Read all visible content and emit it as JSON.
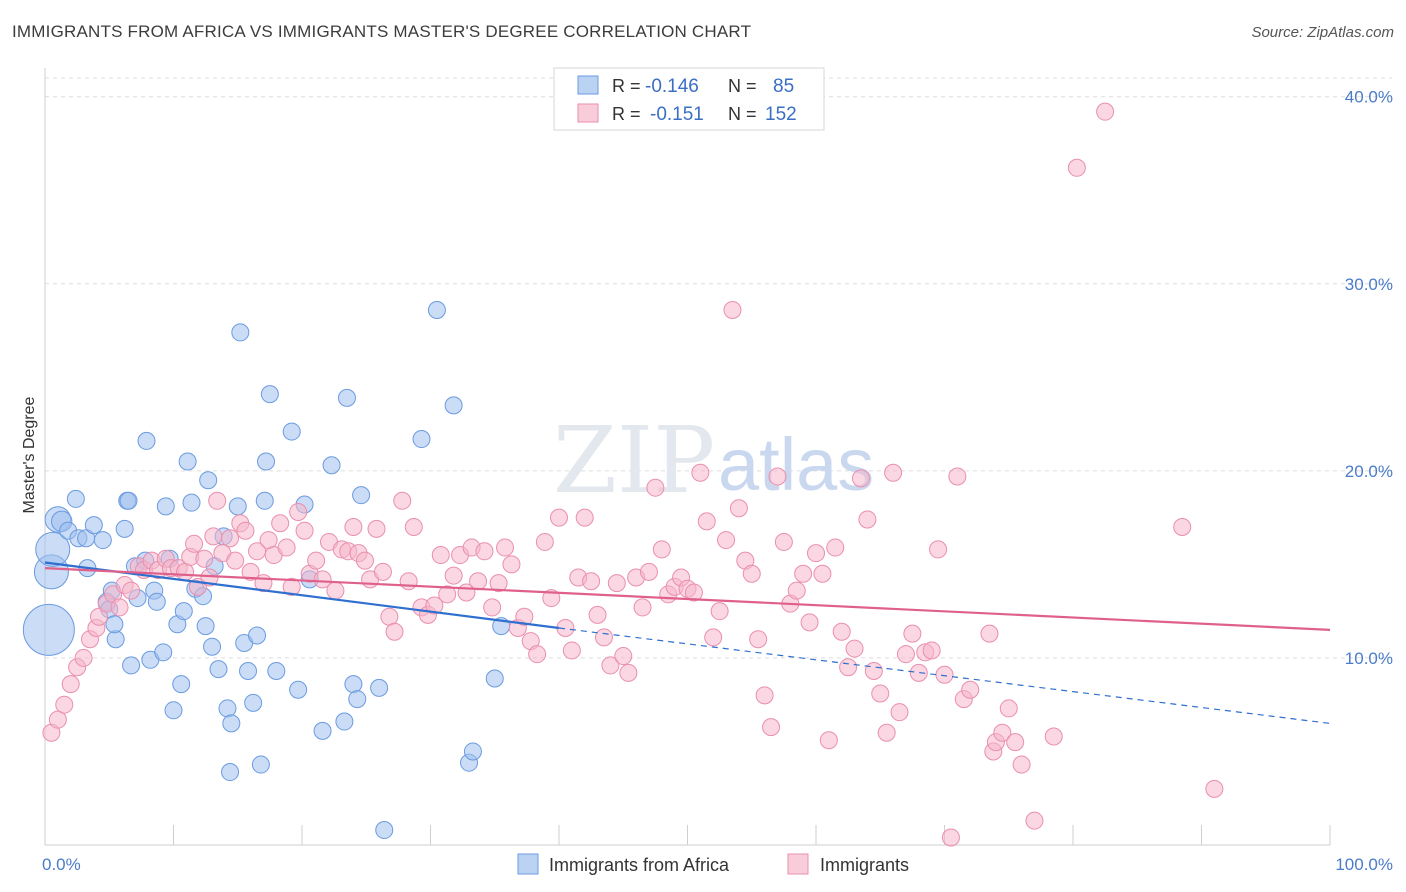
{
  "title": "IMMIGRANTS FROM AFRICA VS IMMIGRANTS MASTER'S DEGREE CORRELATION CHART",
  "source": "Source: ZipAtlas.com",
  "watermark": {
    "zip": "ZIP",
    "atlas": "atlas"
  },
  "legend": {
    "r_label": "R =",
    "n_label": "N =",
    "series": [
      {
        "name": "Immigrants from Africa",
        "r": "-0.146",
        "n": "85",
        "color": "#9ec0ee",
        "stroke": "#6b9be0",
        "line": "#2f6fcf"
      },
      {
        "name": "Immigrants",
        "r": "-0.151",
        "n": "152",
        "color": "#f6b6ca",
        "stroke": "#ea8fae",
        "line": "#e0608c"
      }
    ]
  },
  "chart_data": {
    "type": "scatter",
    "xlabel": "",
    "ylabel": "Master's Degree",
    "xlim": [
      0,
      100
    ],
    "ylim": [
      0,
      41
    ],
    "x_tick_labels": [
      "0.0%",
      "100.0%"
    ],
    "y_ticks": [
      10,
      20,
      30,
      40
    ],
    "y_tick_labels": [
      "10.0%",
      "20.0%",
      "30.0%",
      "40.0%"
    ],
    "grid": true,
    "legend_position": "top-center",
    "trend_lines": [
      {
        "series": "Immigrants from Africa",
        "x0": 0,
        "y0": 15.1,
        "x1": 40,
        "y1": 11.6,
        "dashed_to_x": 100,
        "dashed_to_y": 6.5
      },
      {
        "series": "Immigrants",
        "x0": 0,
        "y0": 14.8,
        "x1": 100,
        "y1": 11.5
      }
    ],
    "series": [
      {
        "name": "Immigrants from Africa",
        "points": [
          [
            0.3,
            11.5,
            3
          ],
          [
            0.5,
            14.6,
            2
          ],
          [
            0.6,
            15.8,
            2
          ],
          [
            1.0,
            17.4,
            1.5
          ],
          [
            1.3,
            17.3,
            1.2
          ],
          [
            1.8,
            16.8,
            1
          ],
          [
            2.4,
            18.5,
            1
          ],
          [
            2.6,
            16.4,
            1
          ],
          [
            3.2,
            16.4,
            1
          ],
          [
            3.3,
            14.8,
            1
          ],
          [
            3.8,
            17.1,
            1
          ],
          [
            4.5,
            16.3,
            1
          ],
          [
            4.8,
            13.0,
            1
          ],
          [
            5.0,
            12.6,
            1
          ],
          [
            5.2,
            13.6,
            1
          ],
          [
            5.5,
            11.0,
            1
          ],
          [
            5.4,
            11.8,
            1
          ],
          [
            6.2,
            16.9,
            1
          ],
          [
            6.4,
            18.4,
            1
          ],
          [
            6.5,
            18.4,
            1
          ],
          [
            6.7,
            9.6,
            1
          ],
          [
            7.0,
            14.9,
            1
          ],
          [
            7.2,
            13.2,
            1
          ],
          [
            7.8,
            15.2,
            1
          ],
          [
            7.9,
            21.6,
            1
          ],
          [
            8.2,
            9.9,
            1
          ],
          [
            8.5,
            13.6,
            1
          ],
          [
            8.7,
            13.0,
            1
          ],
          [
            9.2,
            10.3,
            1
          ],
          [
            9.4,
            18.1,
            1
          ],
          [
            9.7,
            15.3,
            1
          ],
          [
            10.0,
            7.2,
            1
          ],
          [
            10.3,
            11.8,
            1
          ],
          [
            10.6,
            8.6,
            1
          ],
          [
            10.8,
            12.5,
            1
          ],
          [
            11.1,
            20.5,
            1
          ],
          [
            11.4,
            18.3,
            1
          ],
          [
            11.7,
            13.7,
            1
          ],
          [
            12.3,
            13.3,
            1
          ],
          [
            12.5,
            11.7,
            1
          ],
          [
            12.7,
            19.5,
            1
          ],
          [
            13.0,
            10.6,
            1
          ],
          [
            13.2,
            14.9,
            1
          ],
          [
            13.5,
            9.4,
            1
          ],
          [
            13.9,
            16.5,
            1
          ],
          [
            14.2,
            7.3,
            1
          ],
          [
            14.5,
            6.5,
            1
          ],
          [
            14.4,
            3.9,
            1
          ],
          [
            15.0,
            18.1,
            1
          ],
          [
            15.2,
            27.4,
            1
          ],
          [
            15.5,
            10.8,
            1
          ],
          [
            15.8,
            9.3,
            1
          ],
          [
            16.2,
            7.6,
            1
          ],
          [
            16.5,
            11.2,
            1
          ],
          [
            16.8,
            4.3,
            1
          ],
          [
            17.1,
            18.4,
            1
          ],
          [
            17.2,
            20.5,
            1
          ],
          [
            17.5,
            24.1,
            1
          ],
          [
            18.0,
            9.3,
            1
          ],
          [
            19.2,
            22.1,
            1
          ],
          [
            19.7,
            8.3,
            1
          ],
          [
            20.2,
            18.2,
            1
          ],
          [
            20.6,
            14.2,
            1
          ],
          [
            21.6,
            6.1,
            1
          ],
          [
            22.3,
            20.3,
            1
          ],
          [
            23.3,
            6.6,
            1
          ],
          [
            23.5,
            23.9,
            1
          ],
          [
            24.0,
            8.6,
            1
          ],
          [
            24.3,
            7.8,
            1
          ],
          [
            24.6,
            18.7,
            1
          ],
          [
            26.0,
            8.4,
            1
          ],
          [
            26.4,
            0.8,
            1
          ],
          [
            29.3,
            21.7,
            1
          ],
          [
            30.5,
            28.6,
            1
          ],
          [
            31.8,
            23.5,
            1
          ],
          [
            33.0,
            4.4,
            1
          ],
          [
            33.3,
            5.0,
            1
          ],
          [
            35.0,
            8.9,
            1
          ],
          [
            35.5,
            11.7,
            1
          ]
        ]
      },
      {
        "name": "Immigrants",
        "points": [
          [
            0.5,
            6.0,
            1
          ],
          [
            1.0,
            6.7,
            1
          ],
          [
            1.5,
            7.5,
            1
          ],
          [
            2.0,
            8.6,
            1
          ],
          [
            2.5,
            9.5,
            1
          ],
          [
            3.0,
            10.0,
            1
          ],
          [
            3.5,
            11.0,
            1
          ],
          [
            4.0,
            11.6,
            1
          ],
          [
            4.2,
            12.2,
            1
          ],
          [
            4.8,
            12.9,
            1
          ],
          [
            5.3,
            13.4,
            1
          ],
          [
            5.8,
            12.7,
            1
          ],
          [
            6.2,
            13.9,
            1
          ],
          [
            6.7,
            13.6,
            1
          ],
          [
            7.3,
            14.9,
            1
          ],
          [
            7.7,
            14.7,
            1
          ],
          [
            8.3,
            15.2,
            1
          ],
          [
            8.8,
            14.7,
            1
          ],
          [
            9.4,
            15.3,
            1
          ],
          [
            9.8,
            14.8,
            1
          ],
          [
            10.4,
            14.8,
            1
          ],
          [
            10.9,
            14.6,
            1
          ],
          [
            11.3,
            15.4,
            1
          ],
          [
            11.6,
            16.1,
            1
          ],
          [
            11.9,
            13.8,
            1
          ],
          [
            12.4,
            15.3,
            1
          ],
          [
            12.8,
            14.3,
            1
          ],
          [
            13.1,
            16.5,
            1
          ],
          [
            13.4,
            18.4,
            1
          ],
          [
            13.8,
            15.6,
            1
          ],
          [
            14.4,
            16.4,
            1
          ],
          [
            14.8,
            15.2,
            1
          ],
          [
            15.2,
            17.2,
            1
          ],
          [
            15.6,
            16.8,
            1
          ],
          [
            16.0,
            14.6,
            1
          ],
          [
            16.5,
            15.7,
            1
          ],
          [
            17.0,
            14.0,
            1
          ],
          [
            17.4,
            16.3,
            1
          ],
          [
            17.8,
            15.5,
            1
          ],
          [
            18.3,
            17.2,
            1
          ],
          [
            18.8,
            15.9,
            1
          ],
          [
            19.2,
            13.8,
            1
          ],
          [
            19.7,
            17.8,
            1
          ],
          [
            20.2,
            16.8,
            1
          ],
          [
            20.6,
            14.5,
            1
          ],
          [
            21.1,
            15.2,
            1
          ],
          [
            21.6,
            14.2,
            1
          ],
          [
            22.1,
            16.2,
            1
          ],
          [
            22.6,
            13.6,
            1
          ],
          [
            23.1,
            15.8,
            1
          ],
          [
            23.6,
            15.7,
            1
          ],
          [
            24.0,
            17.0,
            1
          ],
          [
            24.4,
            15.6,
            1
          ],
          [
            24.9,
            15.2,
            1
          ],
          [
            25.3,
            14.2,
            1
          ],
          [
            25.8,
            16.9,
            1
          ],
          [
            26.3,
            14.6,
            1
          ],
          [
            26.8,
            12.2,
            1
          ],
          [
            27.2,
            11.4,
            1
          ],
          [
            27.8,
            18.4,
            1
          ],
          [
            28.3,
            14.1,
            1
          ],
          [
            28.7,
            17.0,
            1
          ],
          [
            29.3,
            12.7,
            1
          ],
          [
            29.8,
            12.3,
            1
          ],
          [
            30.3,
            12.8,
            1
          ],
          [
            30.8,
            15.5,
            1
          ],
          [
            31.3,
            13.4,
            1
          ],
          [
            31.8,
            14.4,
            1
          ],
          [
            32.3,
            15.5,
            1
          ],
          [
            32.8,
            13.5,
            1
          ],
          [
            33.2,
            15.9,
            1
          ],
          [
            33.7,
            14.1,
            1
          ],
          [
            34.2,
            15.7,
            1
          ],
          [
            34.8,
            12.7,
            1
          ],
          [
            35.3,
            14.0,
            1
          ],
          [
            35.8,
            15.9,
            1
          ],
          [
            36.3,
            15.0,
            1
          ],
          [
            36.8,
            11.6,
            1
          ],
          [
            37.3,
            12.2,
            1
          ],
          [
            37.8,
            10.9,
            1
          ],
          [
            38.3,
            10.2,
            1
          ],
          [
            38.9,
            16.2,
            1
          ],
          [
            39.4,
            13.2,
            1
          ],
          [
            40.0,
            17.5,
            1
          ],
          [
            40.5,
            11.6,
            1
          ],
          [
            41.0,
            10.4,
            1
          ],
          [
            41.5,
            14.3,
            1
          ],
          [
            42.0,
            17.5,
            1
          ],
          [
            42.5,
            14.1,
            1
          ],
          [
            43.0,
            12.3,
            1
          ],
          [
            43.5,
            11.1,
            1
          ],
          [
            44.0,
            9.6,
            1
          ],
          [
            44.5,
            14.0,
            1
          ],
          [
            45.0,
            10.1,
            1
          ],
          [
            45.4,
            9.2,
            1
          ],
          [
            46.0,
            14.3,
            1
          ],
          [
            46.5,
            12.7,
            1
          ],
          [
            47.0,
            14.6,
            1
          ],
          [
            47.5,
            19.1,
            1
          ],
          [
            48.0,
            15.8,
            1
          ],
          [
            48.5,
            13.4,
            1
          ],
          [
            49.0,
            13.8,
            1
          ],
          [
            49.5,
            14.3,
            1
          ],
          [
            50.0,
            13.7,
            1
          ],
          [
            50.5,
            13.5,
            1
          ],
          [
            51.0,
            19.9,
            1
          ],
          [
            51.5,
            17.3,
            1
          ],
          [
            52.0,
            11.1,
            1
          ],
          [
            52.5,
            12.5,
            1
          ],
          [
            53.0,
            16.3,
            1
          ],
          [
            53.5,
            28.6,
            1
          ],
          [
            54.0,
            18.0,
            1
          ],
          [
            54.5,
            15.2,
            1
          ],
          [
            55.0,
            14.5,
            1
          ],
          [
            55.5,
            11.0,
            1
          ],
          [
            56.0,
            8.0,
            1
          ],
          [
            56.5,
            6.3,
            1
          ],
          [
            57.0,
            19.7,
            1
          ],
          [
            57.5,
            16.2,
            1
          ],
          [
            58.0,
            12.9,
            1
          ],
          [
            58.5,
            13.6,
            1
          ],
          [
            59.0,
            14.5,
            1
          ],
          [
            59.5,
            11.9,
            1
          ],
          [
            60.0,
            15.6,
            1
          ],
          [
            60.5,
            14.5,
            1
          ],
          [
            61.0,
            5.6,
            1
          ],
          [
            61.5,
            15.9,
            1
          ],
          [
            62.0,
            11.4,
            1
          ],
          [
            62.5,
            9.5,
            1
          ],
          [
            63.0,
            10.5,
            1
          ],
          [
            63.5,
            19.6,
            1
          ],
          [
            64.0,
            17.4,
            1
          ],
          [
            64.5,
            9.3,
            1
          ],
          [
            65.0,
            8.1,
            1
          ],
          [
            65.5,
            6.0,
            1
          ],
          [
            66.0,
            19.9,
            1
          ],
          [
            66.5,
            7.1,
            1
          ],
          [
            67.0,
            10.2,
            1
          ],
          [
            67.5,
            11.3,
            1
          ],
          [
            68.0,
            9.2,
            1
          ],
          [
            68.5,
            10.3,
            1
          ],
          [
            69.0,
            10.4,
            1
          ],
          [
            69.5,
            15.8,
            1
          ],
          [
            70.0,
            9.1,
            1
          ],
          [
            70.5,
            0.4,
            1
          ],
          [
            71.0,
            19.7,
            1
          ],
          [
            71.5,
            7.8,
            1
          ],
          [
            72.0,
            8.3,
            1
          ],
          [
            73.5,
            11.3,
            1
          ],
          [
            73.8,
            5.0,
            1
          ],
          [
            74.0,
            5.5,
            1
          ],
          [
            74.5,
            6.0,
            1
          ],
          [
            75.0,
            7.3,
            1
          ],
          [
            75.5,
            5.5,
            1
          ],
          [
            76.0,
            4.3,
            1
          ],
          [
            77.0,
            1.3,
            1
          ],
          [
            78.5,
            5.8,
            1
          ],
          [
            80.3,
            36.2,
            1
          ],
          [
            82.5,
            39.2,
            1
          ],
          [
            88.5,
            17.0,
            1
          ],
          [
            91.0,
            3.0,
            1
          ]
        ]
      }
    ]
  }
}
